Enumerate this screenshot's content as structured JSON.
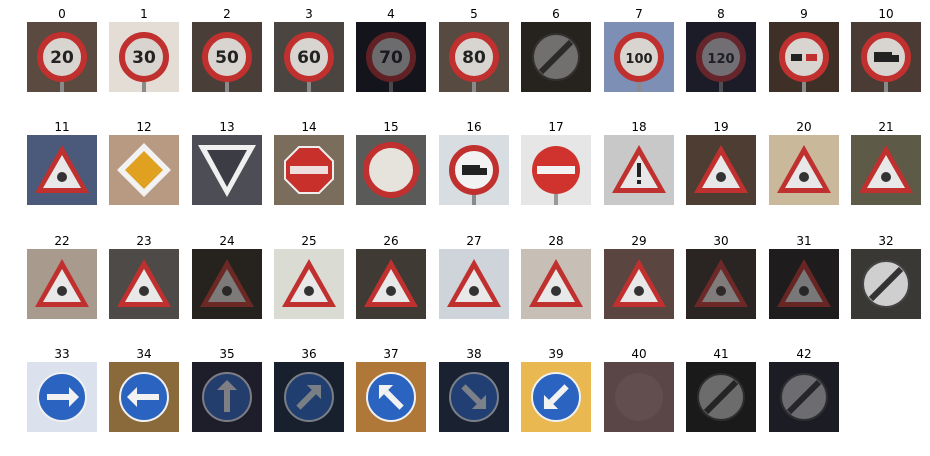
{
  "figure": {
    "cells": [
      {
        "label": "0",
        "bg": "#5a4a40",
        "kind": "prohibit",
        "glyph": "20"
      },
      {
        "label": "1",
        "bg": "#e4ddd6",
        "kind": "prohibit",
        "glyph": "30"
      },
      {
        "label": "2",
        "bg": "#4a3f38",
        "kind": "prohibit",
        "glyph": "50"
      },
      {
        "label": "3",
        "bg": "#4a4540",
        "kind": "prohibit",
        "glyph": "60"
      },
      {
        "label": "4",
        "bg": "#14141c",
        "kind": "prohibit",
        "glyph": "70"
      },
      {
        "label": "5",
        "bg": "#574a40",
        "kind": "prohibit",
        "glyph": "80"
      },
      {
        "label": "6",
        "bg": "#26231f",
        "kind": "endlimit"
      },
      {
        "label": "7",
        "bg": "#7d8fb4",
        "kind": "prohibit",
        "glyph": "100"
      },
      {
        "label": "8",
        "bg": "#1c1c28",
        "kind": "prohibit",
        "glyph": "120"
      },
      {
        "label": "9",
        "bg": "#3e3026",
        "kind": "prohibit",
        "glyph": "car"
      },
      {
        "label": "10",
        "bg": "#4a3c34",
        "kind": "prohibit",
        "glyph": "truck"
      },
      {
        "label": "11",
        "bg": "#4b5a7a",
        "kind": "triangle",
        "glyph": "cross"
      },
      {
        "label": "12",
        "bg": "#b89a82",
        "kind": "diamond"
      },
      {
        "label": "13",
        "bg": "#4d4d55",
        "kind": "yield"
      },
      {
        "label": "14",
        "bg": "#7a6d5c",
        "kind": "stop"
      },
      {
        "label": "15",
        "bg": "#5a5a58",
        "kind": "novehicles"
      },
      {
        "label": "16",
        "bg": "#d8dde2",
        "kind": "prohibit",
        "glyph": "truck",
        "white": true
      },
      {
        "label": "17",
        "bg": "#e6e6e6",
        "kind": "noentry"
      },
      {
        "label": "18",
        "bg": "#c8c8c8",
        "kind": "triangle",
        "glyph": "exclam"
      },
      {
        "label": "19",
        "bg": "#4d3d32",
        "kind": "triangle",
        "glyph": "curve"
      },
      {
        "label": "20",
        "bg": "#c9b89a",
        "kind": "triangle",
        "glyph": "curve"
      },
      {
        "label": "21",
        "bg": "#5e5a48",
        "kind": "triangle",
        "glyph": "double"
      },
      {
        "label": "22",
        "bg": "#a89a8c",
        "kind": "triangle",
        "glyph": "bump"
      },
      {
        "label": "23",
        "bg": "#4e4a48",
        "kind": "triangle",
        "glyph": "slip"
      },
      {
        "label": "24",
        "bg": "#26221e",
        "kind": "triangle",
        "glyph": "narrow"
      },
      {
        "label": "25",
        "bg": "#dadcd4",
        "kind": "triangle",
        "glyph": "work"
      },
      {
        "label": "26",
        "bg": "#403a34",
        "kind": "triangle",
        "glyph": "signal"
      },
      {
        "label": "27",
        "bg": "#cfd3da",
        "kind": "triangle",
        "glyph": "ped"
      },
      {
        "label": "28",
        "bg": "#c7bfb5",
        "kind": "triangle",
        "glyph": "child"
      },
      {
        "label": "29",
        "bg": "#5a4540",
        "kind": "triangle",
        "glyph": "bike"
      },
      {
        "label": "30",
        "bg": "#2a2422",
        "kind": "triangle",
        "glyph": "snow"
      },
      {
        "label": "31",
        "bg": "#1e1c1c",
        "kind": "triangle",
        "glyph": "animal"
      },
      {
        "label": "32",
        "bg": "#3a3834",
        "kind": "endlimit"
      },
      {
        "label": "33",
        "bg": "#dbe2ee",
        "kind": "blue",
        "glyph": "right"
      },
      {
        "label": "34",
        "bg": "#8a6a3a",
        "kind": "blue",
        "glyph": "left"
      },
      {
        "label": "35",
        "bg": "#1e1e2a",
        "kind": "blue",
        "glyph": "up"
      },
      {
        "label": "36",
        "bg": "#18202e",
        "kind": "blue",
        "glyph": "upright"
      },
      {
        "label": "37",
        "bg": "#b07838",
        "kind": "blue",
        "glyph": "upleft"
      },
      {
        "label": "38",
        "bg": "#1a2232",
        "kind": "blue",
        "glyph": "keepright"
      },
      {
        "label": "39",
        "bg": "#e9b850",
        "kind": "blue",
        "glyph": "keepleft"
      },
      {
        "label": "40",
        "bg": "#5a4646",
        "kind": "round"
      },
      {
        "label": "41",
        "bg": "#1a1a1a",
        "kind": "endlimit"
      },
      {
        "label": "42",
        "bg": "#1c1c24",
        "kind": "endlimit"
      }
    ]
  }
}
